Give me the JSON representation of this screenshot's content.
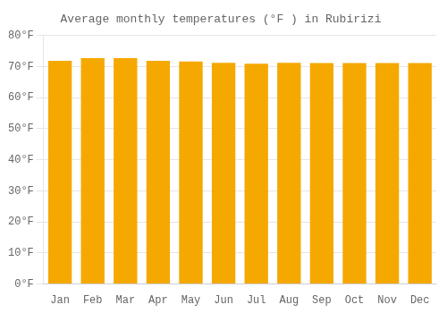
{
  "chart_data": {
    "type": "bar",
    "title": "Average monthly temperatures (°F ) in Rubirizi",
    "categories": [
      "Jan",
      "Feb",
      "Mar",
      "Apr",
      "May",
      "Jun",
      "Jul",
      "Aug",
      "Sep",
      "Oct",
      "Nov",
      "Dec"
    ],
    "values": [
      71.8,
      72.7,
      72.7,
      71.8,
      71.6,
      71.2,
      70.9,
      71.2,
      71.1,
      71.1,
      71.1,
      71.1
    ],
    "color": "#F5A800",
    "ylim": [
      0,
      80
    ],
    "yticks": [
      {
        "value": 0,
        "label": "0°F"
      },
      {
        "value": 10,
        "label": "10°F"
      },
      {
        "value": 20,
        "label": "20°F"
      },
      {
        "value": 30,
        "label": "30°F"
      },
      {
        "value": 40,
        "label": "40°F"
      },
      {
        "value": 50,
        "label": "50°F"
      },
      {
        "value": 60,
        "label": "60°F"
      },
      {
        "value": 70,
        "label": "70°F"
      },
      {
        "value": 80,
        "label": "80°F"
      }
    ],
    "grid": true
  }
}
